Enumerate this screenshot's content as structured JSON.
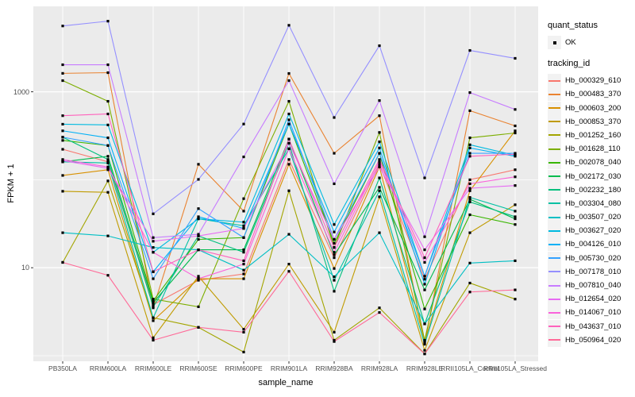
{
  "figure": {
    "background": "#FFFFFF",
    "panel_background": "#EBEBEB",
    "gridline_color": "#FFFFFF",
    "tick_color": "#333333",
    "tick_label_color": "#4D4D4D",
    "axis_title_color": "#000000",
    "legend_key_background": "#F2F2F2",
    "point_color": "#000000"
  },
  "legend": {
    "quant_status_title": "quant_status",
    "quant_status_items": [
      {
        "label": "OK"
      }
    ],
    "tracking_id_title": "tracking_id"
  },
  "chart_data": {
    "type": "line",
    "title": "",
    "xlabel": "sample_name",
    "ylabel": "FPKM + 1",
    "y_scale": "log10",
    "y_ticks": [
      10,
      1000
    ],
    "y_gridlines": [
      1,
      10,
      100,
      1000
    ],
    "ylim": [
      0.85,
      9000
    ],
    "grid": true,
    "legend_position": "right",
    "categories": [
      "PB350LA",
      "RRIM600LA",
      "RRIM600LE",
      "RRIM600SE",
      "RRIM600PE",
      "RRIM901LA",
      "RRIM928BA",
      "RRIM928LA",
      "RRIM928LE",
      "RRII105LA_Control",
      "RRII105LA_Stressed"
    ],
    "series": [
      {
        "name": "Hb_000329_610",
        "color": "#F8766D",
        "values": [
          222,
          160,
          3.8,
          7.2,
          8.5,
          170,
          13,
          150,
          7.4,
          100,
          130
        ]
      },
      {
        "name": "Hb_000483_370",
        "color": "#EA8331",
        "values": [
          1620,
          1650,
          3.5,
          150,
          44,
          1615,
          200,
          535,
          1.4,
          610,
          410
        ]
      },
      {
        "name": "Hb_000603_200",
        "color": "#D89000",
        "values": [
          112,
          130,
          2.5,
          7.5,
          7.5,
          150,
          9.8,
          140,
          1.45,
          75,
          360
        ]
      },
      {
        "name": "Hb_000853_370",
        "color": "#C09B00",
        "values": [
          74,
          72,
          1.6,
          8,
          2.0,
          11,
          1.85,
          64,
          1.15,
          25,
          52
        ]
      },
      {
        "name": "Hb_001252_160",
        "color": "#A3A500",
        "values": [
          11.5,
          97,
          2.7,
          2.1,
          1.1,
          75,
          1.5,
          3.5,
          1.05,
          6.7,
          4.4
        ]
      },
      {
        "name": "Hb_001628_110",
        "color": "#7CAE00",
        "values": [
          1340,
          780,
          4.4,
          3.6,
          61,
          780,
          17,
          345,
          1.5,
          300,
          340
        ]
      },
      {
        "name": "Hb_002078_040",
        "color": "#39B600",
        "values": [
          280,
          245,
          4.2,
          21,
          22,
          430,
          19,
          200,
          3.4,
          40,
          31
        ]
      },
      {
        "name": "Hb_002172_030",
        "color": "#00BB4E",
        "values": [
          160,
          185,
          4.0,
          16,
          16,
          290,
          14,
          82,
          5.6,
          60,
          36
        ]
      },
      {
        "name": "Hb_002232_180",
        "color": "#00BF7D",
        "values": [
          305,
          170,
          3.6,
          23,
          15,
          260,
          5.4,
          105,
          2.3,
          56,
          38
        ]
      },
      {
        "name": "Hb_003304_080",
        "color": "#00C1A3",
        "values": [
          160,
          155,
          2.7,
          36,
          30,
          225,
          7.2,
          75,
          1.35,
          63,
          44
        ]
      },
      {
        "name": "Hb_003507_020",
        "color": "#00BFC4",
        "values": [
          25,
          23,
          17,
          16,
          9.4,
          24,
          7.9,
          25,
          2.3,
          11.3,
          12
        ]
      },
      {
        "name": "Hb_003627_020",
        "color": "#00BAE0",
        "values": [
          428,
          420,
          15,
          36,
          33,
          560,
          31,
          270,
          8.0,
          250,
          190
        ]
      },
      {
        "name": "Hb_004126_010",
        "color": "#00B0F6",
        "values": [
          360,
          300,
          9,
          38,
          28,
          430,
          25.5,
          230,
          6.5,
          230,
          185
        ]
      },
      {
        "name": "Hb_005730_020",
        "color": "#35A2FF",
        "values": [
          305,
          245,
          7.5,
          47,
          22,
          480,
          21,
          200,
          8.0,
          200,
          200
        ]
      },
      {
        "name": "Hb_007178_010",
        "color": "#9590FF",
        "values": [
          5600,
          6350,
          41,
          101,
          430,
          5700,
          510,
          3340,
          105,
          2950,
          2400
        ]
      },
      {
        "name": "Hb_007810_040",
        "color": "#C77CFF",
        "values": [
          2030,
          2030,
          22,
          24,
          182,
          1340,
          90,
          795,
          22.5,
          980,
          630
        ]
      },
      {
        "name": "Hb_012654_020",
        "color": "#E76BF3",
        "values": [
          165,
          135,
          20,
          23,
          28,
          260,
          21,
          140,
          16,
          80,
          86
        ]
      },
      {
        "name": "Hb_014067_010",
        "color": "#FA62DB",
        "values": [
          170,
          140,
          15,
          7.5,
          11,
          225,
          15,
          160,
          11.5,
          90,
          108
        ]
      },
      {
        "name": "Hb_043637_010",
        "color": "#FF62BC",
        "values": [
          535,
          560,
          9,
          16,
          12,
          290,
          17,
          170,
          13,
          185,
          195
        ]
      },
      {
        "name": "Hb_050964_020",
        "color": "#FF6A98",
        "values": [
          11.5,
          8.2,
          1.5,
          2.1,
          1.85,
          9.1,
          1.45,
          3.1,
          1.05,
          5.3,
          5.6
        ]
      }
    ]
  }
}
